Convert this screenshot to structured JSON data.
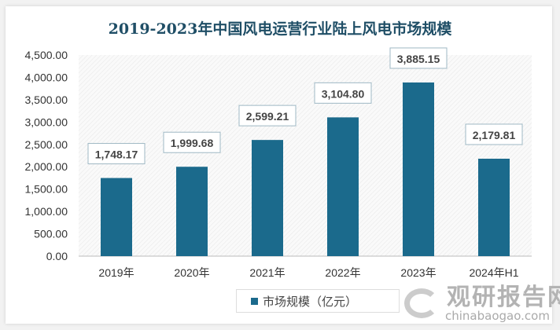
{
  "chart_data": {
    "type": "bar",
    "title": "2019-2023年中国风电运营行业陆上风电市场规模",
    "categories": [
      "2019年",
      "2020年",
      "2021年",
      "2022年",
      "2023年",
      "2024年H1"
    ],
    "series": [
      {
        "name": "市场规模（亿元）",
        "values": [
          1748.17,
          1999.68,
          2599.21,
          3104.8,
          3885.15,
          2179.81
        ],
        "color": "#1b6a8c"
      }
    ],
    "data_labels": [
      "1,748.17",
      "1,999.68",
      "2,599.21",
      "3,104.80",
      "3,885.15",
      "2,179.81"
    ],
    "yticks": [
      "0.00",
      "500.00",
      "1,000.00",
      "1,500.00",
      "2,000.00",
      "2,500.00",
      "3,000.00",
      "3,500.00",
      "4,000.00",
      "4,500.00"
    ],
    "ylim": [
      0,
      4500
    ],
    "grid": false,
    "legend": "bottom"
  },
  "watermark": {
    "cn": "观研报告网",
    "en": "chinabaogao.com"
  }
}
